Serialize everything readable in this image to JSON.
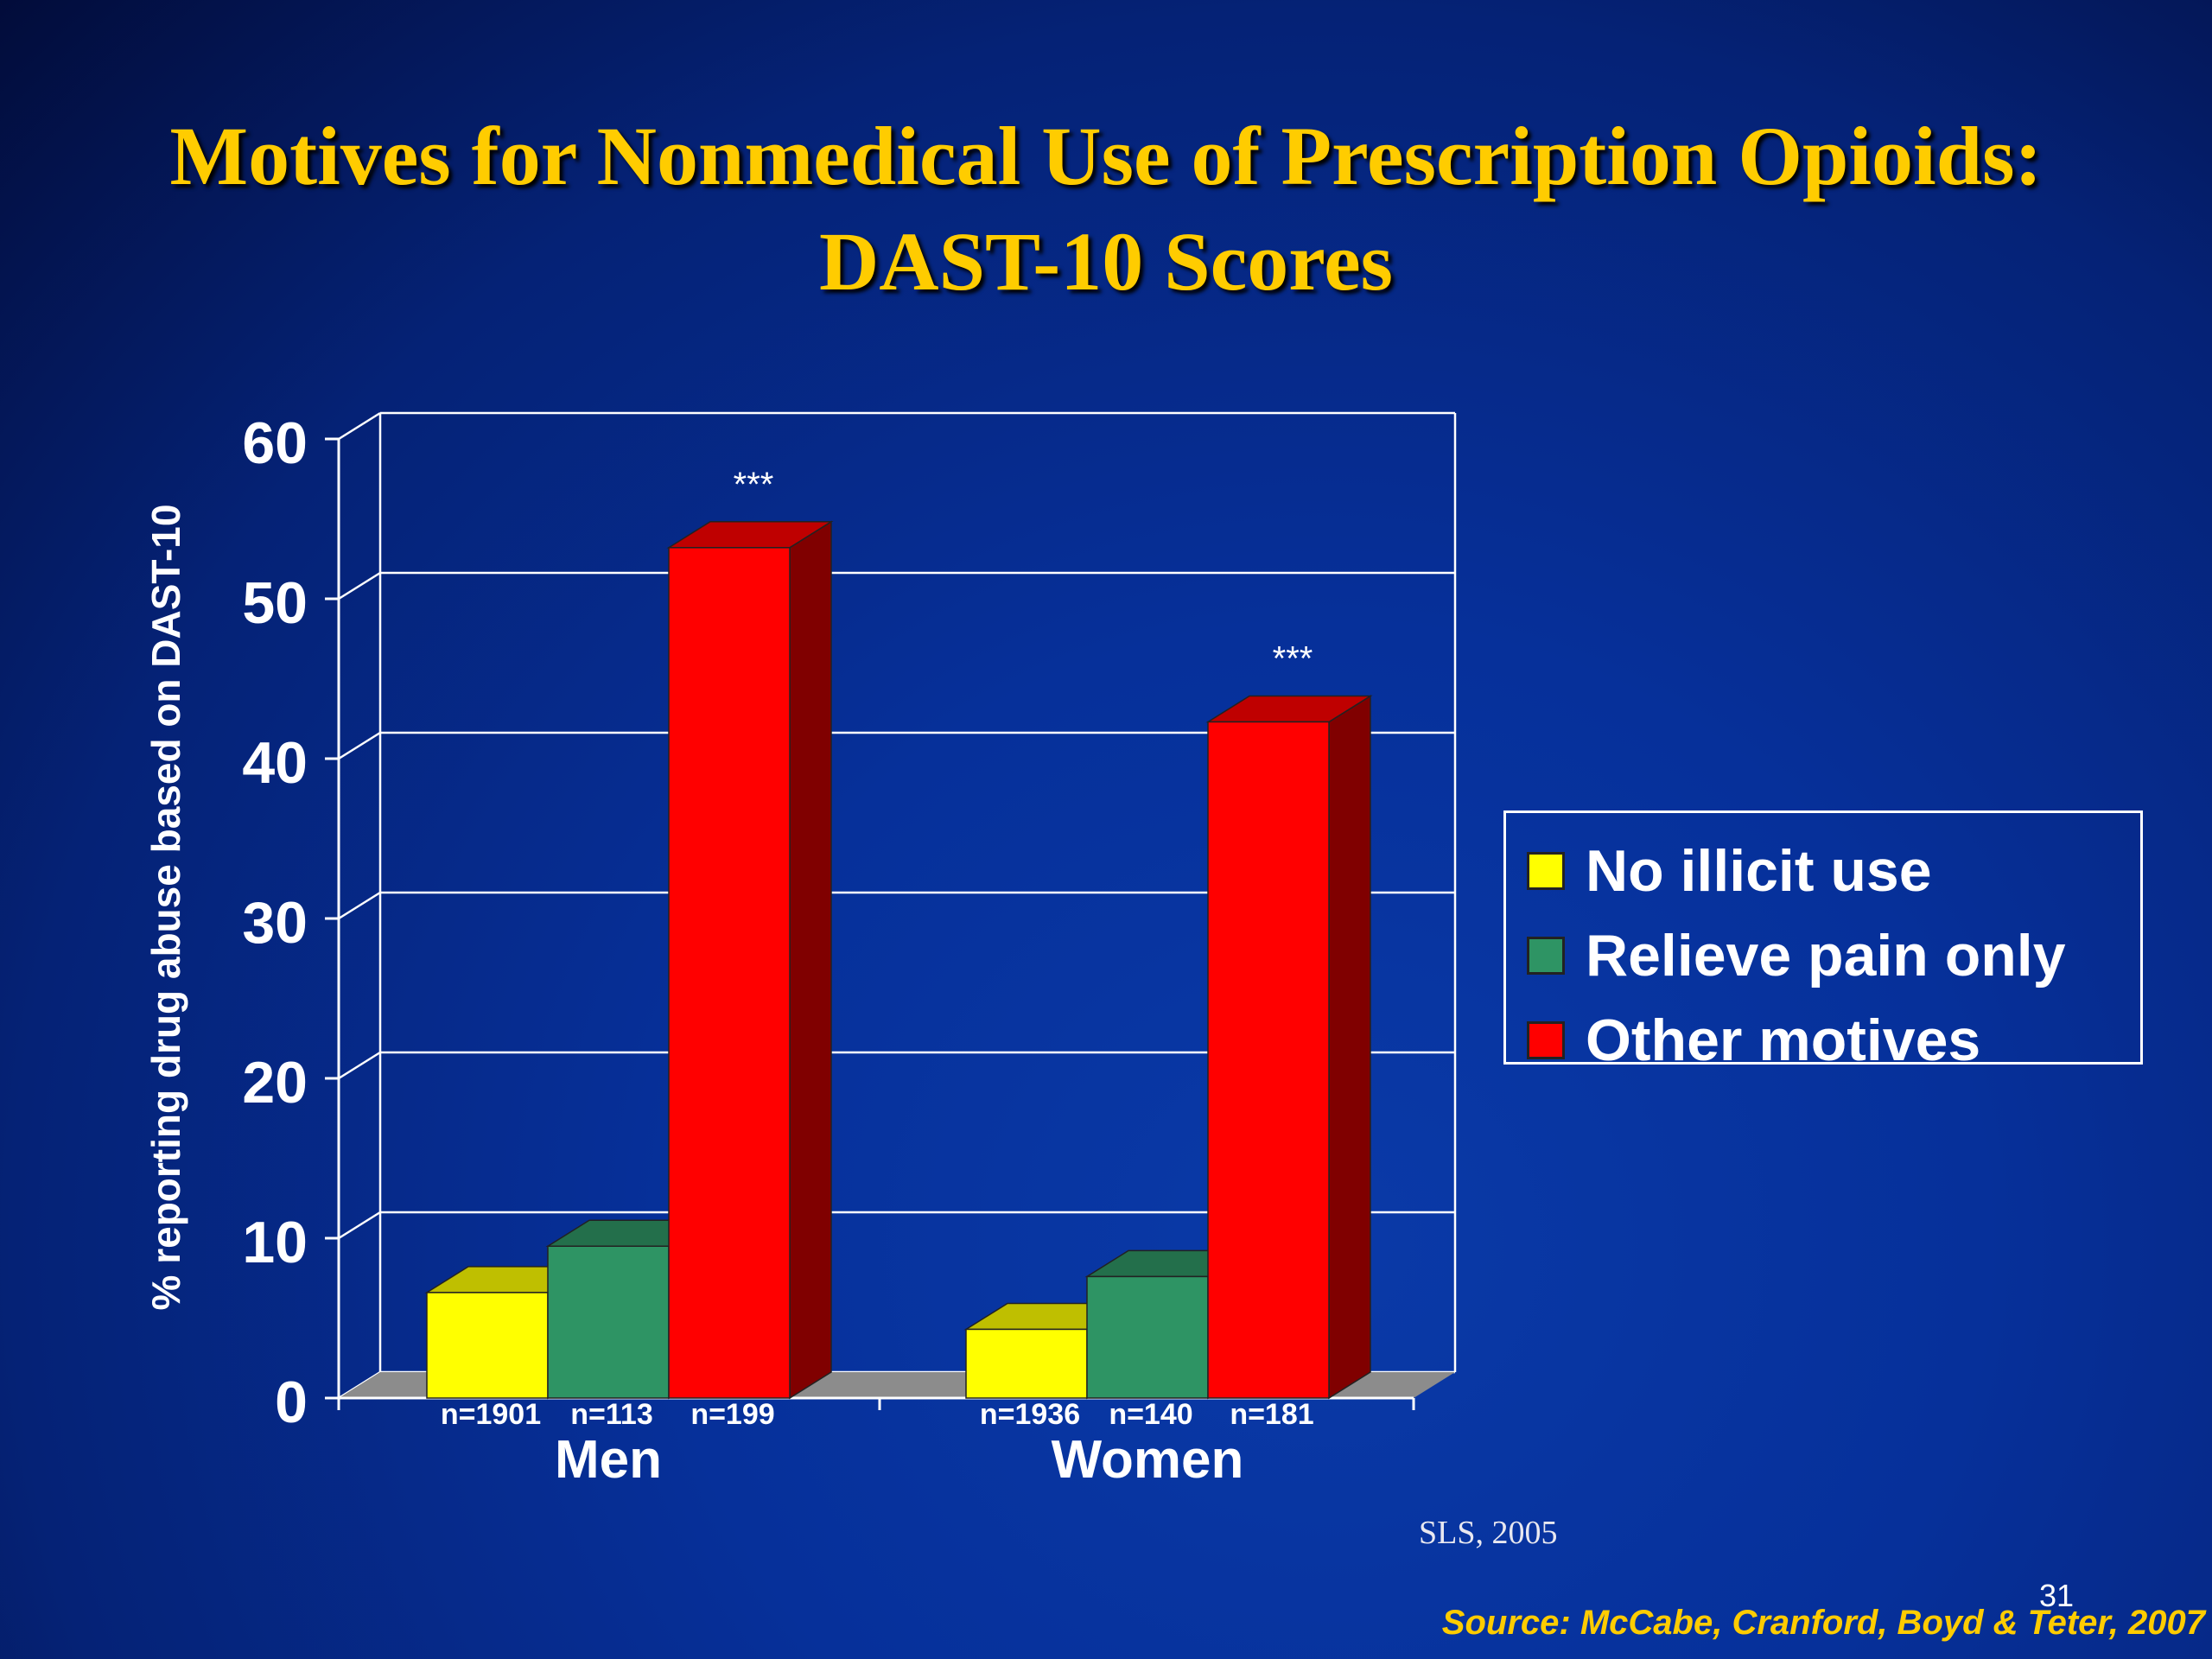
{
  "title_lines": [
    "Motives for Nonmedical Use of Prescription Opioids:",
    "DAST-10 Scores"
  ],
  "chart_data": {
    "type": "bar",
    "categories": [
      "Men",
      "Women"
    ],
    "series": [
      {
        "name": "No illicit use",
        "color": "#ffff00",
        "values": [
          6.6,
          4.3
        ],
        "n": [
          "n=1901",
          "n=1936"
        ]
      },
      {
        "name": "Relieve pain only",
        "color": "#2e9464",
        "values": [
          9.5,
          7.6
        ],
        "n": [
          "n=113",
          "n=140"
        ]
      },
      {
        "name": "Other motives",
        "color": "#ff0000",
        "values": [
          53.2,
          42.3
        ],
        "n": [
          "n=199",
          "n=181"
        ],
        "annotation": "***"
      }
    ],
    "ylabel": "% reporting drug abuse based on DAST-10",
    "ylim": [
      0,
      60
    ],
    "yticks": [
      0,
      10,
      20,
      30,
      40,
      50,
      60
    ],
    "grid": true,
    "legend_position": "right"
  },
  "legend": [
    "No illicit use",
    "Relieve pain only",
    "Other motives"
  ],
  "credit": "SLS, 2005",
  "page_number": "31",
  "source": "Source: McCabe, Cranford, Boyd & Teter, 2007"
}
